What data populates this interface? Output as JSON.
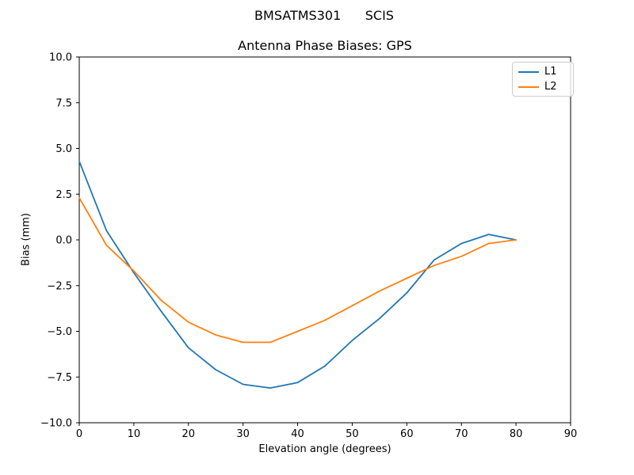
{
  "figure": {
    "suptitle": "BMSATMS301      SCIS",
    "background": "#ffffff"
  },
  "chart_data": {
    "type": "line",
    "title": "Antenna Phase Biases: GPS",
    "xlabel": "Elevation angle (degrees)",
    "ylabel": "Bias (mm)",
    "xlim": [
      0,
      90
    ],
    "ylim": [
      -10,
      10
    ],
    "grid": false,
    "legend_position": "upper right",
    "x_ticks": {
      "values": [
        0,
        10,
        20,
        30,
        40,
        50,
        60,
        70,
        80,
        90
      ],
      "labels": [
        "0",
        "10",
        "20",
        "30",
        "40",
        "50",
        "60",
        "70",
        "80",
        "90"
      ]
    },
    "y_ticks": {
      "values": [
        10,
        7.5,
        5,
        2.5,
        0,
        -2.5,
        -5,
        -7.5,
        -10
      ],
      "labels": [
        "10.0",
        "7.5",
        "5.0",
        "2.5",
        "0.0",
        "−2.5",
        "−5.0",
        "−7.5",
        "−10.0"
      ]
    },
    "x": [
      0,
      5,
      10,
      15,
      20,
      25,
      30,
      35,
      40,
      45,
      50,
      55,
      60,
      65,
      70,
      75,
      80
    ],
    "series": [
      {
        "name": "L1",
        "color": "#1f77b4",
        "values": [
          4.3,
          0.5,
          -1.8,
          -3.9,
          -5.9,
          -7.1,
          -7.9,
          -8.1,
          -7.8,
          -6.9,
          -5.5,
          -4.3,
          -2.9,
          -1.1,
          -0.2,
          0.3,
          0.0
        ]
      },
      {
        "name": "L2",
        "color": "#ff7f0e",
        "values": [
          2.3,
          -0.3,
          -1.7,
          -3.3,
          -4.5,
          -5.2,
          -5.6,
          -5.6,
          -5.0,
          -4.4,
          -3.6,
          -2.8,
          -2.1,
          -1.4,
          -0.9,
          -0.2,
          0.0
        ]
      }
    ]
  }
}
